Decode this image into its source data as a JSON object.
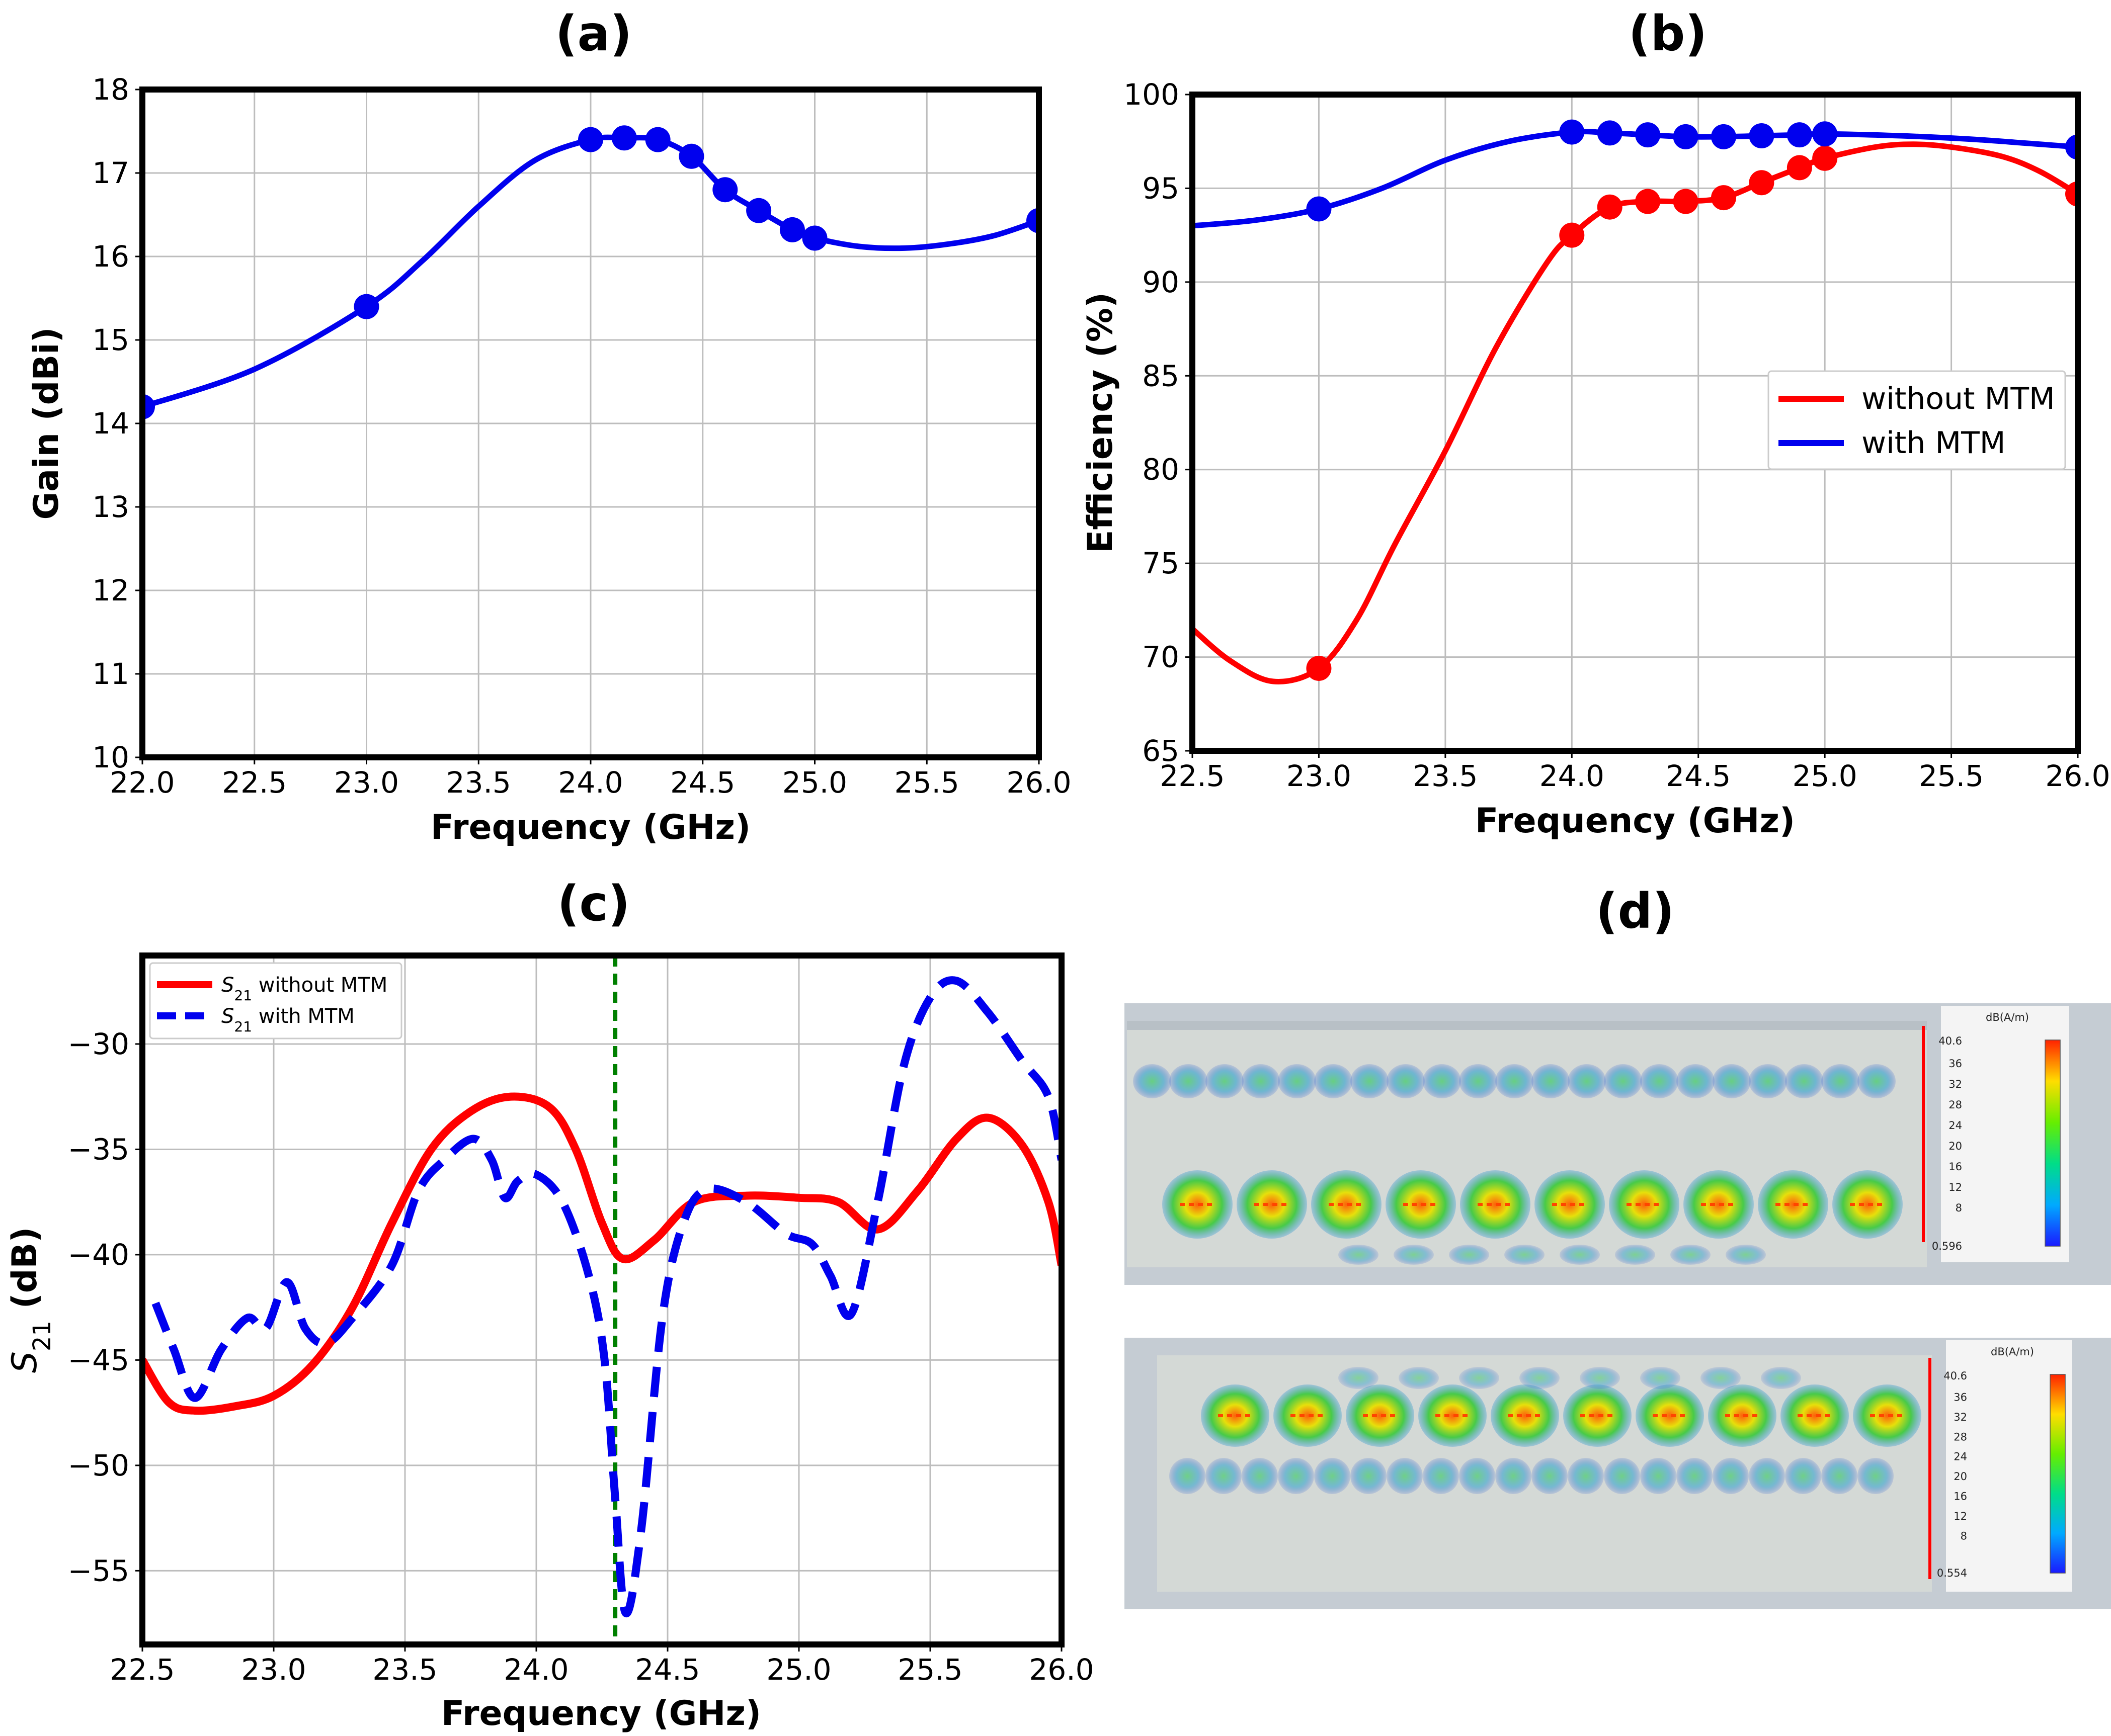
{
  "panels": [
    {
      "label": "(a)"
    },
    {
      "label": "(b)"
    },
    {
      "label": "(c)"
    },
    {
      "label": "(d)"
    }
  ],
  "chart_data": [
    {
      "id": "a",
      "type": "line",
      "title": "(a)",
      "xlabel": "Frequency (GHz)",
      "ylabel": "Gain (dBi)",
      "xlim": [
        22.0,
        26.0
      ],
      "ylim": [
        10,
        18
      ],
      "xticks": [
        "22.0",
        "22.5",
        "23.0",
        "23.5",
        "24.0",
        "24.5",
        "25.0",
        "25.5",
        "26.0"
      ],
      "yticks": [
        "10",
        "11",
        "12",
        "13",
        "14",
        "15",
        "16",
        "17",
        "18"
      ],
      "grid": true,
      "series": [
        {
          "color": "#0000ee",
          "curve": [
            [
              22.0,
              14.2
            ],
            [
              22.5,
              14.65
            ],
            [
              23.0,
              15.4
            ],
            [
              23.25,
              15.95
            ],
            [
              23.5,
              16.6
            ],
            [
              23.75,
              17.15
            ],
            [
              24.0,
              17.4
            ],
            [
              24.15,
              17.42
            ],
            [
              24.3,
              17.4
            ],
            [
              24.45,
              17.2
            ],
            [
              24.6,
              16.8
            ],
            [
              24.75,
              16.55
            ],
            [
              24.9,
              16.32
            ],
            [
              25.0,
              16.22
            ],
            [
              25.2,
              16.12
            ],
            [
              25.4,
              16.1
            ],
            [
              25.6,
              16.15
            ],
            [
              25.8,
              16.25
            ],
            [
              26.0,
              16.43
            ]
          ],
          "markers": [
            [
              22.0,
              14.2
            ],
            [
              23.0,
              15.4
            ],
            [
              24.0,
              17.4
            ],
            [
              24.15,
              17.42
            ],
            [
              24.3,
              17.4
            ],
            [
              24.45,
              17.2
            ],
            [
              24.6,
              16.8
            ],
            [
              24.75,
              16.55
            ],
            [
              24.9,
              16.32
            ],
            [
              25.0,
              16.22
            ],
            [
              26.0,
              16.43
            ]
          ]
        }
      ]
    },
    {
      "id": "b",
      "type": "line",
      "title": "(b)",
      "xlabel": "Frequency (GHz)",
      "ylabel": "Efficiency (%)",
      "xlim": [
        22.5,
        26.0
      ],
      "ylim": [
        65,
        100
      ],
      "xticks": [
        "22.5",
        "23.0",
        "23.5",
        "24.0",
        "24.5",
        "25.0",
        "25.5",
        "26.0"
      ],
      "yticks": [
        "65",
        "70",
        "75",
        "80",
        "85",
        "90",
        "95",
        "100"
      ],
      "grid": true,
      "legend": {
        "position": "center-right",
        "items": [
          "without MTM",
          "with MTM"
        ]
      },
      "series": [
        {
          "name": "without MTM",
          "color": "#ff0000",
          "curve": [
            [
              22.5,
              71.5
            ],
            [
              22.65,
              69.8
            ],
            [
              22.82,
              68.7
            ],
            [
              23.0,
              69.4
            ],
            [
              23.15,
              72.0
            ],
            [
              23.3,
              76.0
            ],
            [
              23.5,
              81.0
            ],
            [
              23.7,
              86.5
            ],
            [
              23.9,
              91.0
            ],
            [
              24.0,
              92.5
            ],
            [
              24.15,
              94.0
            ],
            [
              24.3,
              94.3
            ],
            [
              24.45,
              94.3
            ],
            [
              24.6,
              94.5
            ],
            [
              24.75,
              95.3
            ],
            [
              24.9,
              96.1
            ],
            [
              25.0,
              96.6
            ],
            [
              25.2,
              97.2
            ],
            [
              25.35,
              97.35
            ],
            [
              25.5,
              97.2
            ],
            [
              25.7,
              96.7
            ],
            [
              25.85,
              95.9
            ],
            [
              26.0,
              94.7
            ]
          ],
          "markers": [
            [
              23.0,
              69.4
            ],
            [
              24.0,
              92.5
            ],
            [
              24.15,
              94.0
            ],
            [
              24.3,
              94.3
            ],
            [
              24.45,
              94.3
            ],
            [
              24.6,
              94.5
            ],
            [
              24.75,
              95.3
            ],
            [
              24.9,
              96.1
            ],
            [
              25.0,
              96.6
            ],
            [
              26.0,
              94.7
            ]
          ]
        },
        {
          "name": "with MTM",
          "color": "#0000ee",
          "curve": [
            [
              22.5,
              93.0
            ],
            [
              22.75,
              93.3
            ],
            [
              23.0,
              93.9
            ],
            [
              23.25,
              95.0
            ],
            [
              23.5,
              96.5
            ],
            [
              23.75,
              97.5
            ],
            [
              24.0,
              98.0
            ],
            [
              24.15,
              97.95
            ],
            [
              24.3,
              97.85
            ],
            [
              24.45,
              97.75
            ],
            [
              24.6,
              97.75
            ],
            [
              24.75,
              97.8
            ],
            [
              24.9,
              97.85
            ],
            [
              25.0,
              97.9
            ],
            [
              25.3,
              97.8
            ],
            [
              25.6,
              97.6
            ],
            [
              25.8,
              97.4
            ],
            [
              26.0,
              97.2
            ]
          ],
          "markers": [
            [
              23.0,
              93.9
            ],
            [
              24.0,
              98.0
            ],
            [
              24.15,
              97.95
            ],
            [
              24.3,
              97.85
            ],
            [
              24.45,
              97.75
            ],
            [
              24.6,
              97.75
            ],
            [
              24.75,
              97.8
            ],
            [
              24.9,
              97.85
            ],
            [
              25.0,
              97.9
            ],
            [
              26.0,
              97.2
            ]
          ]
        }
      ]
    },
    {
      "id": "c",
      "type": "line",
      "title": "(c)",
      "xlabel": "Frequency (GHz)",
      "ylabel": "S21 (dB)",
      "xlim": [
        22.5,
        26.0
      ],
      "ylim": [
        -58.5,
        -25.8
      ],
      "xticks": [
        "22.5",
        "23.0",
        "23.5",
        "24.0",
        "24.5",
        "25.0",
        "25.5",
        "26.0"
      ],
      "yticks": [
        "-30",
        "-35",
        "-40",
        "-45",
        "-50",
        "-55"
      ],
      "grid": true,
      "legend": {
        "position": "top-left",
        "items": [
          "S21 without MTM",
          "S21 with MTM"
        ]
      },
      "vline": {
        "x": 24.3,
        "color": "#008000"
      },
      "series": [
        {
          "name": "S21 without MTM",
          "color": "#ff0000",
          "dash": false,
          "curve": [
            [
              22.5,
              -45.0
            ],
            [
              22.6,
              -47.0
            ],
            [
              22.7,
              -47.4
            ],
            [
              22.85,
              -47.2
            ],
            [
              23.0,
              -46.7
            ],
            [
              23.15,
              -45.2
            ],
            [
              23.3,
              -42.5
            ],
            [
              23.45,
              -38.5
            ],
            [
              23.6,
              -35.0
            ],
            [
              23.75,
              -33.2
            ],
            [
              23.9,
              -32.5
            ],
            [
              24.05,
              -33.0
            ],
            [
              24.15,
              -35.0
            ],
            [
              24.25,
              -38.5
            ],
            [
              24.33,
              -40.2
            ],
            [
              24.45,
              -39.3
            ],
            [
              24.6,
              -37.5
            ],
            [
              24.8,
              -37.2
            ],
            [
              25.0,
              -37.3
            ],
            [
              25.15,
              -37.5
            ],
            [
              25.3,
              -38.8
            ],
            [
              25.45,
              -37.0
            ],
            [
              25.6,
              -34.5
            ],
            [
              25.72,
              -33.5
            ],
            [
              25.85,
              -34.8
            ],
            [
              25.95,
              -37.5
            ],
            [
              26.0,
              -40.5
            ]
          ]
        },
        {
          "name": "S21 with MTM",
          "color": "#0000ee",
          "dash": true,
          "curve": [
            [
              22.55,
              -42.3
            ],
            [
              22.62,
              -44.5
            ],
            [
              22.7,
              -46.8
            ],
            [
              22.8,
              -44.5
            ],
            [
              22.9,
              -43.0
            ],
            [
              22.97,
              -43.5
            ],
            [
              23.05,
              -41.3
            ],
            [
              23.12,
              -43.5
            ],
            [
              23.2,
              -44.2
            ],
            [
              23.3,
              -43.0
            ],
            [
              23.45,
              -40.5
            ],
            [
              23.55,
              -37.0
            ],
            [
              23.65,
              -35.5
            ],
            [
              23.76,
              -34.5
            ],
            [
              23.83,
              -35.5
            ],
            [
              23.88,
              -37.3
            ],
            [
              23.93,
              -36.5
            ],
            [
              24.0,
              -36.2
            ],
            [
              24.1,
              -37.5
            ],
            [
              24.2,
              -41.0
            ],
            [
              24.26,
              -45.0
            ],
            [
              24.3,
              -51.5
            ],
            [
              24.34,
              -57.0
            ],
            [
              24.4,
              -53.0
            ],
            [
              24.48,
              -43.0
            ],
            [
              24.56,
              -38.5
            ],
            [
              24.65,
              -36.9
            ],
            [
              24.8,
              -37.5
            ],
            [
              24.95,
              -39.0
            ],
            [
              25.05,
              -39.5
            ],
            [
              25.12,
              -41.0
            ],
            [
              25.2,
              -42.8
            ],
            [
              25.3,
              -37.5
            ],
            [
              25.4,
              -31.0
            ],
            [
              25.5,
              -27.8
            ],
            [
              25.6,
              -27.0
            ],
            [
              25.72,
              -28.5
            ],
            [
              25.85,
              -30.8
            ],
            [
              25.95,
              -32.5
            ],
            [
              26.0,
              -35.5
            ]
          ]
        }
      ]
    }
  ],
  "field_maps": {
    "unit": "dB(A/m)",
    "top": {
      "max": "40.6",
      "min": "0.596",
      "ticks": [
        "36",
        "32",
        "28",
        "24",
        "20",
        "16",
        "12",
        "8"
      ]
    },
    "bottom": {
      "max": "40.6",
      "min": "0.554",
      "ticks": [
        "36",
        "32",
        "28",
        "24",
        "20",
        "16",
        "12",
        "8"
      ]
    }
  },
  "colors": {
    "red": "#ff0000",
    "blue": "#0000ee",
    "green": "#008000",
    "grid": "#bdbdbd"
  }
}
